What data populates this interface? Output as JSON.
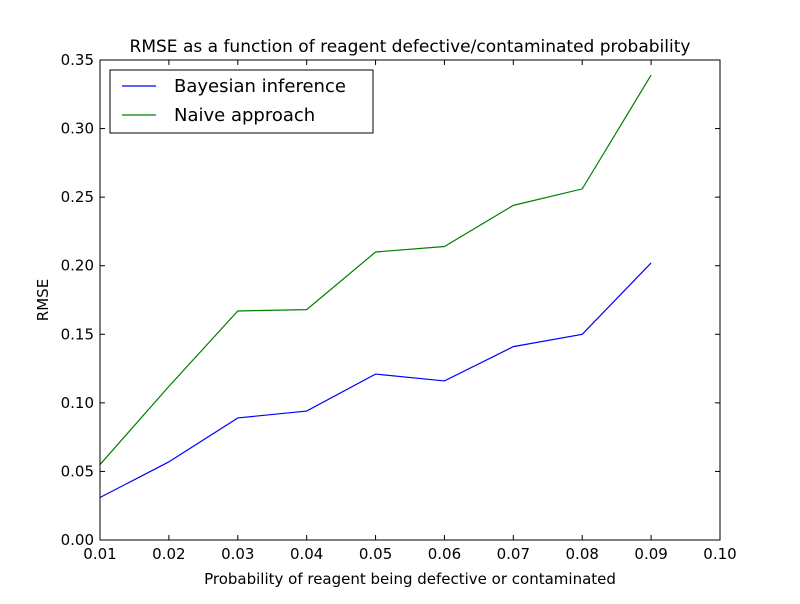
{
  "chart_data": {
    "type": "line",
    "title": "RMSE as a function of reagent defective/contaminated probability",
    "xlabel": "Probability of reagent being defective or contaminated",
    "ylabel": "RMSE",
    "xlim": [
      0.01,
      0.1
    ],
    "ylim": [
      0.0,
      0.35
    ],
    "x_ticks": [
      0.01,
      0.02,
      0.03,
      0.04,
      0.05,
      0.06,
      0.07,
      0.08,
      0.09,
      0.1
    ],
    "x_tick_labels": [
      "0.01",
      "0.02",
      "0.03",
      "0.04",
      "0.05",
      "0.06",
      "0.07",
      "0.08",
      "0.09",
      "0.10"
    ],
    "y_ticks": [
      0.0,
      0.05,
      0.1,
      0.15,
      0.2,
      0.25,
      0.3,
      0.35
    ],
    "y_tick_labels": [
      "0.00",
      "0.05",
      "0.10",
      "0.15",
      "0.20",
      "0.25",
      "0.30",
      "0.35"
    ],
    "grid": false,
    "legend_position": "top-left",
    "x": [
      0.01,
      0.02,
      0.03,
      0.04,
      0.05,
      0.06,
      0.07,
      0.08,
      0.09
    ],
    "series": [
      {
        "name": "Bayesian inference",
        "color": "#0000ff",
        "values": [
          0.031,
          0.057,
          0.089,
          0.094,
          0.121,
          0.116,
          0.141,
          0.15,
          0.202
        ]
      },
      {
        "name": "Naive approach",
        "color": "#008000",
        "values": [
          0.055,
          0.112,
          0.167,
          0.168,
          0.21,
          0.214,
          0.244,
          0.256,
          0.339
        ]
      }
    ]
  }
}
